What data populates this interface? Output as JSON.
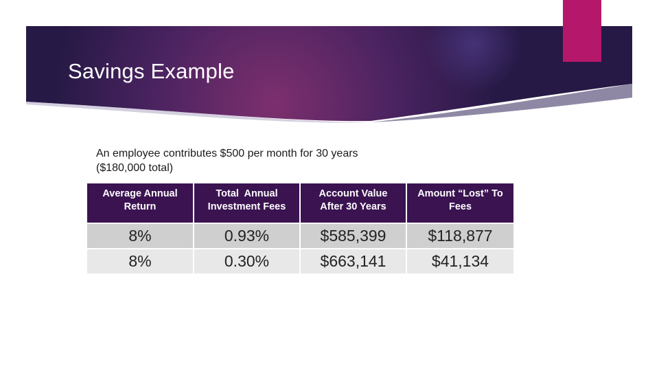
{
  "slide": {
    "title": "Savings Example",
    "intro_line1": "An employee contributes $500 per month for 30 years",
    "intro_line2": "($180,000 total)"
  },
  "colors": {
    "banner_dark": "#2a1a47",
    "banner_magenta": "#7a2d6b",
    "accent_pink": "#b5176a",
    "table_header": "#3b1351",
    "row_dark": "#cfcfcf",
    "row_light": "#e8e8e8"
  },
  "table": {
    "headers": [
      [
        "Average Annual",
        "Return"
      ],
      [
        "Total  Annual",
        "Investment Fees"
      ],
      [
        "Account Value",
        "After 30 Years"
      ],
      [
        "Amount “Lost” To",
        "Fees"
      ]
    ],
    "rows": [
      [
        "8%",
        "0.93%",
        "$585,399",
        "$118,877"
      ],
      [
        "8%",
        "0.30%",
        "$663,141",
        "$41,134"
      ]
    ]
  }
}
